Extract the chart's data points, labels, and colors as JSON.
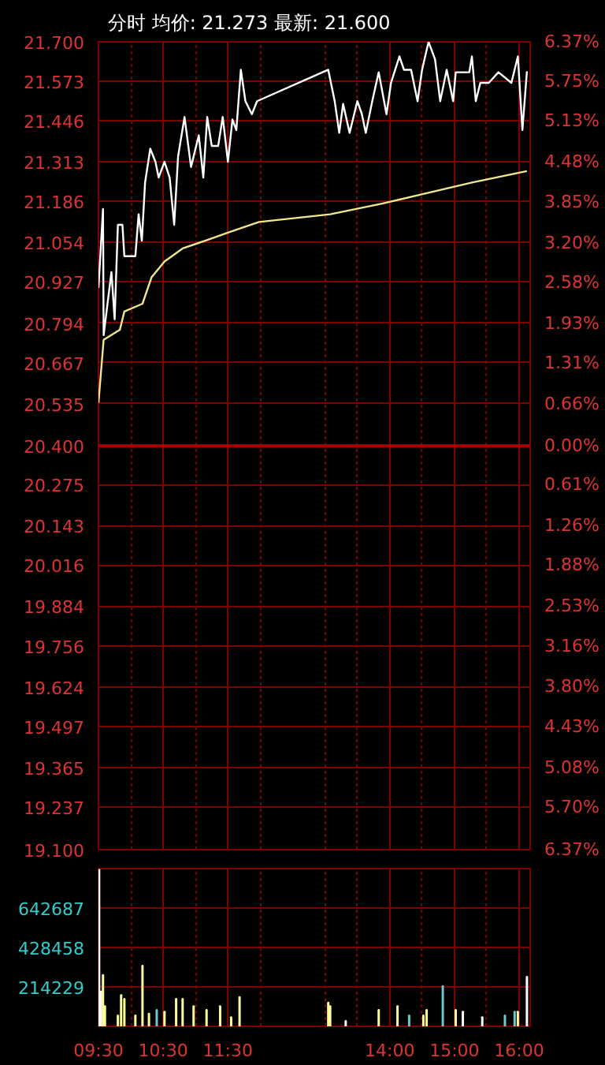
{
  "chart_data": [
    {
      "type": "line",
      "title": "分时 均价: 21.273 最新: 21.600",
      "xlim": [
        9.5,
        16.17
      ],
      "ylim": [
        19.1,
        21.7
      ],
      "yticks": [
        {
          "value": 21.7,
          "label": "21.700"
        },
        21.573,
        21.446,
        21.313,
        21.186,
        21.054,
        20.927,
        20.794,
        20.667,
        20.535,
        {
          "value": 20.4,
          "label": "20.400"
        },
        20.275,
        20.143,
        20.016,
        19.884,
        19.756,
        19.624,
        19.497,
        19.365,
        19.237,
        {
          "value": 19.1,
          "label": "19.100"
        }
      ],
      "y2lim": [
        -6.37,
        6.37
      ],
      "y2ticks": [
        {
          "value": 6.37,
          "label": "6.37%"
        },
        {
          "value": 5.75,
          "label": "5.75%"
        },
        {
          "value": 5.13,
          "label": "5.13%"
        },
        {
          "value": 4.48,
          "label": "4.48%"
        },
        {
          "value": 3.85,
          "label": "3.85%"
        },
        {
          "value": 3.2,
          "label": "3.20%"
        },
        {
          "value": 2.58,
          "label": "2.58%"
        },
        {
          "value": 1.93,
          "label": "1.93%"
        },
        {
          "value": 1.31,
          "label": "1.31%"
        },
        {
          "value": 0.66,
          "label": "0.66%"
        },
        {
          "value": 0,
          "label": "0.00%"
        },
        {
          "value": -0.61,
          "label": "0.61%"
        },
        {
          "value": -1.26,
          "label": "1.26%"
        },
        {
          "value": -1.88,
          "label": "1.88%"
        },
        {
          "value": -2.53,
          "label": "2.53%"
        },
        {
          "value": -3.16,
          "label": "3.16%"
        },
        {
          "value": -3.8,
          "label": "3.80%"
        },
        {
          "value": -4.43,
          "label": "4.43%"
        },
        {
          "value": -5.08,
          "label": "5.08%"
        },
        {
          "value": -5.7,
          "label": "5.70%"
        },
        {
          "value": -6.37,
          "label": "6.37%"
        }
      ],
      "tick_labels": "y",
      "grid": true,
      "ref_lines": [
        {
          "axis": "y",
          "value": 20.4,
          "color": "#a00000"
        }
      ],
      "series": [
        {
          "color": "#ffffff",
          "x": [
            9.5,
            9.57,
            9.58,
            9.7,
            9.75,
            9.8,
            9.87,
            9.9,
            10.07,
            10.12,
            10.17,
            10.22,
            10.3,
            10.38,
            10.43,
            10.52,
            10.6,
            10.67,
            10.73,
            10.83,
            10.93,
            11.05,
            11.12,
            11.18,
            11.25,
            11.35,
            11.42,
            11.5,
            11.57,
            11.63,
            11.7,
            11.77,
            11.87,
            11.95,
            13.05,
            13.15,
            13.22,
            13.28,
            13.38,
            13.5,
            13.57,
            13.63,
            13.73,
            13.83,
            13.95,
            14.02,
            14.15,
            14.22,
            14.33,
            14.43,
            14.5,
            14.6,
            14.7,
            14.78,
            14.88,
            14.98,
            15.02,
            15.23,
            15.27,
            15.33,
            15.4,
            15.53,
            15.68,
            15.88,
            15.98,
            16.05,
            16.12
          ],
          "values": [
            20.908,
            21.162,
            20.756,
            20.959,
            20.807,
            21.111,
            21.111,
            21.01,
            21.01,
            21.145,
            21.06,
            21.247,
            21.356,
            21.314,
            21.263,
            21.314,
            21.263,
            21.111,
            21.331,
            21.458,
            21.297,
            21.399,
            21.263,
            21.458,
            21.365,
            21.365,
            21.458,
            21.314,
            21.45,
            21.416,
            21.61,
            21.509,
            21.467,
            21.509,
            21.61,
            21.509,
            21.407,
            21.5,
            21.407,
            21.509,
            21.467,
            21.407,
            21.509,
            21.602,
            21.467,
            21.568,
            21.653,
            21.61,
            21.61,
            21.509,
            21.61,
            21.7,
            21.644,
            21.509,
            21.61,
            21.509,
            21.602,
            21.602,
            21.653,
            21.509,
            21.568,
            21.568,
            21.602,
            21.568,
            21.653,
            21.416,
            21.605
          ]
        },
        {
          "color": "#f0e68c",
          "x": [
            9.5,
            9.58,
            9.83,
            9.9,
            10.18,
            10.32,
            10.52,
            10.8,
            11.15,
            11.5,
            11.98,
            13.08,
            13.88,
            14.57,
            15.27,
            16.12
          ],
          "values": [
            20.538,
            20.741,
            20.773,
            20.832,
            20.857,
            20.942,
            20.993,
            21.035,
            21.06,
            21.086,
            21.12,
            21.145,
            21.179,
            21.213,
            21.247,
            21.284
          ]
        }
      ]
    },
    {
      "type": "bar",
      "xlim": [
        9.5,
        16.17
      ],
      "ylim": [
        0,
        856916
      ],
      "xticks": [
        {
          "value": 9.5,
          "label": "09:30"
        },
        {
          "value": 10,
          "label": null
        },
        {
          "value": 10.5,
          "label": "10:30"
        },
        {
          "value": 11,
          "label": null
        },
        {
          "value": 11.5,
          "label": "11:30"
        },
        {
          "value": 12,
          "label": null
        },
        {
          "value": 13,
          "label": null
        },
        {
          "value": 13.5,
          "label": null
        },
        {
          "value": 14,
          "label": "14:00"
        },
        {
          "value": 14.5,
          "label": null
        },
        {
          "value": 15,
          "label": "15:00"
        },
        {
          "value": 15.5,
          "label": null
        },
        {
          "value": 16,
          "label": "16:00"
        }
      ],
      "yticks": [
        214229,
        428458,
        642687
      ],
      "grid": true,
      "x": [
        9.51,
        9.54,
        9.57,
        9.6,
        9.8,
        9.85,
        9.9,
        10.07,
        10.18,
        10.28,
        10.4,
        10.52,
        10.7,
        10.8,
        10.97,
        11.17,
        11.38,
        11.55,
        11.68,
        13.05,
        13.08,
        13.32,
        13.83,
        14.12,
        14.3,
        14.52,
        14.57,
        14.82,
        15.02,
        15.13,
        15.43,
        15.78,
        15.93,
        15.98,
        16.12
      ],
      "values": [
        850000,
        190000,
        280000,
        110000,
        60000,
        170000,
        150000,
        60000,
        330000,
        70000,
        90000,
        80000,
        150000,
        150000,
        110000,
        90000,
        110000,
        50000,
        160000,
        130000,
        110000,
        30000,
        90000,
        110000,
        60000,
        60000,
        90000,
        220000,
        90000,
        80000,
        50000,
        60000,
        80000,
        80000,
        270000
      ],
      "colors": [
        "#ffffff",
        "#ffffff",
        "#ffff99",
        "#ffff99",
        "#ffff99",
        "#ffff99",
        "#ffff99",
        "#ffff99",
        "#ffff99",
        "#ffff99",
        "#66cccc",
        "#ffff99",
        "#ffff99",
        "#ffff99",
        "#ffff99",
        "#ffff99",
        "#ffff99",
        "#ffff99",
        "#ffff99",
        "#ffff99",
        "#ffff99",
        "#ffffff",
        "#ffff99",
        "#ffff99",
        "#66cccc",
        "#ffff99",
        "#ffff99",
        "#66cccc",
        "#ffff99",
        "#ffffff",
        "#ffffff",
        "#66cccc",
        "#66cccc",
        "#ffff99",
        "#ffffff"
      ]
    }
  ]
}
